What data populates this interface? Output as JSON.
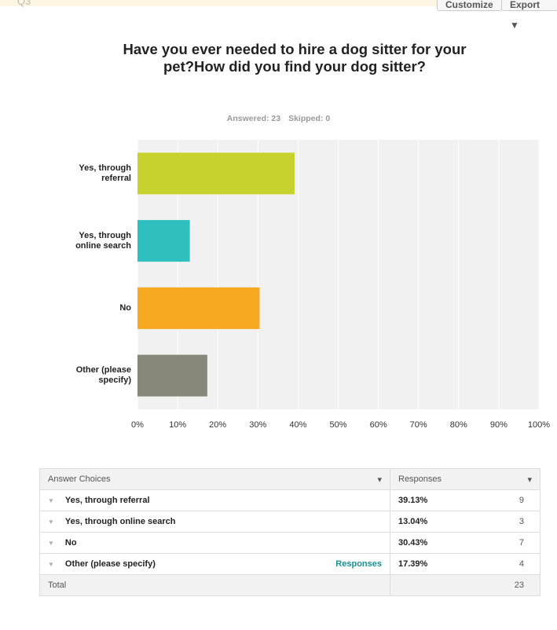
{
  "header": {
    "question": "Q3",
    "buttons": [
      "Customize",
      "Export ▼"
    ]
  },
  "chart_data": {
    "type": "bar",
    "orientation": "horizontal",
    "title": "Have you ever needed to hire a dog sitter for your pet?How did you find your dog sitter?",
    "answered": "Answered: 23",
    "skipped": "Skipped: 0",
    "categories": [
      "Yes, through referral",
      "Yes, through online search",
      "No",
      "Other (please specify)"
    ],
    "values": [
      39.13,
      13.04,
      30.43,
      17.39
    ],
    "colors": [
      "#c8d22e",
      "#30bfbf",
      "#f8a922",
      "#87877a"
    ],
    "xlim": [
      0,
      100
    ],
    "xticks": [
      {
        "value": 0,
        "label": "0%"
      },
      {
        "value": 10,
        "label": "10%"
      },
      {
        "value": 20,
        "label": "20%"
      },
      {
        "value": 30,
        "label": "30%"
      },
      {
        "value": 40,
        "label": "40%"
      },
      {
        "value": 50,
        "label": "50%"
      },
      {
        "value": 60,
        "label": "60%"
      },
      {
        "value": 70,
        "label": "70%"
      },
      {
        "value": 80,
        "label": "80%"
      },
      {
        "value": 90,
        "label": "90%"
      },
      {
        "value": 100,
        "label": "100%"
      }
    ],
    "grid": true
  },
  "table": {
    "headers": [
      "Answer Choices",
      "Responses"
    ],
    "rows": [
      {
        "choice": "Yes, through referral",
        "percent": "39.13%",
        "count": 9
      },
      {
        "choice": "Yes, through online search",
        "percent": "13.04%",
        "count": 3
      },
      {
        "choice": "No",
        "percent": "30.43%",
        "count": 7
      },
      {
        "choice": "Other (please specify)",
        "link": "Responses",
        "percent": "17.39%",
        "count": 4
      }
    ],
    "total": {
      "label": "Total",
      "count": 23
    }
  }
}
